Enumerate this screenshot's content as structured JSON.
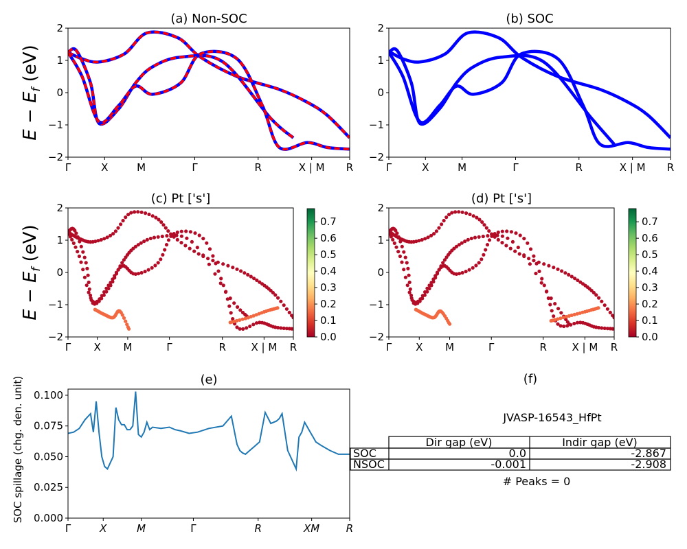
{
  "chart_data": [
    {
      "id": "a",
      "type": "line",
      "title": "(a) Non-SOC",
      "ylabel": "E − E_f (eV)",
      "ylabel_main": "E − E",
      "ylabel_sub": "f",
      "ylabel_unit": " (eV)",
      "ylim": [
        -2,
        2
      ],
      "yticks": [
        "−2",
        "−1",
        "0",
        "1",
        "2"
      ],
      "xticks": [
        "Γ",
        "X",
        "M",
        "Γ",
        "R",
        "X | M",
        "R"
      ],
      "series": [
        {
          "color": "#0000ff",
          "style": "solid",
          "x": [
            0,
            0.05,
            0.11,
            0.2,
            0.28,
            0.39,
            0.47,
            0.6,
            0.75,
            0.85,
            0.92,
            1
          ],
          "y": [
            1.25,
            1.05,
            0.95,
            1.2,
            1.85,
            1.7,
            1.1,
            0.5,
            0.1,
            -0.3,
            -0.7,
            -1.4
          ]
        },
        {
          "color": "#0000ff",
          "style": "solid",
          "x": [
            0,
            0.03,
            0.08,
            0.11,
            0.18,
            0.24,
            0.3,
            0.4,
            0.55,
            0.72,
            0.8
          ],
          "y": [
            1.25,
            1.3,
            0.3,
            -0.95,
            -0.5,
            0.3,
            0.8,
            1.1,
            0.95,
            -0.8,
            -1.4
          ]
        },
        {
          "color": "#0000ff",
          "style": "solid",
          "x": [
            0,
            0.05,
            0.11,
            0.18,
            0.24,
            0.3,
            0.4,
            0.47,
            0.6,
            0.69,
            0.75,
            0.85,
            0.92,
            1
          ],
          "y": [
            1.25,
            0.5,
            -0.9,
            -0.4,
            0.2,
            -0.05,
            0.3,
            1.2,
            1.05,
            -0.4,
            -1.7,
            -1.55,
            -1.7,
            -1.75
          ]
        }
      ]
    },
    {
      "id": "b",
      "type": "line",
      "title": "(b) SOC",
      "ylim": [
        -2,
        2
      ],
      "yticks": [
        "−2",
        "−1",
        "0",
        "1",
        "2"
      ],
      "xticks": [
        "Γ",
        "X",
        "M",
        "Γ",
        "R",
        "X | M",
        "R"
      ],
      "series": [
        {
          "color": "#0000ff",
          "style": "solid",
          "x": [
            0,
            0.05,
            0.11,
            0.2,
            0.28,
            0.39,
            0.47,
            0.6,
            0.75,
            0.85,
            0.92,
            1
          ],
          "y": [
            1.28,
            1.05,
            0.95,
            1.2,
            1.85,
            1.7,
            1.1,
            0.5,
            0.1,
            -0.3,
            -0.7,
            -1.4
          ]
        },
        {
          "color": "#0000ff",
          "style": "solid",
          "x": [
            0,
            0.03,
            0.08,
            0.11,
            0.18,
            0.24,
            0.3,
            0.4,
            0.55,
            0.72,
            0.8
          ],
          "y": [
            1.25,
            1.3,
            0.3,
            -0.95,
            -0.5,
            0.3,
            0.8,
            1.1,
            0.95,
            -0.8,
            -1.6
          ]
        },
        {
          "color": "#0000ff",
          "style": "solid",
          "x": [
            0,
            0.05,
            0.11,
            0.18,
            0.24,
            0.3,
            0.4,
            0.47,
            0.6,
            0.69,
            0.75,
            0.85,
            0.92,
            1
          ],
          "y": [
            1.25,
            0.5,
            -0.9,
            -0.4,
            0.2,
            -0.05,
            0.3,
            1.2,
            1.05,
            -0.4,
            -1.6,
            -1.55,
            -1.7,
            -1.75
          ]
        }
      ]
    },
    {
      "id": "c",
      "type": "scatter",
      "title": "(c)  Pt ['s']",
      "ylabel": "E − E_f (eV)",
      "ylabel_main": "E − E",
      "ylabel_sub": "f",
      "ylabel_unit": " (eV)",
      "ylim": [
        -2,
        2
      ],
      "yticks": [
        "−2",
        "−1",
        "0",
        "1",
        "2"
      ],
      "xticks": [
        "Γ",
        "X",
        "M",
        "Γ",
        "R",
        "X | M",
        "R"
      ],
      "colorbar": {
        "colormap": "RdYlGn",
        "range": [
          0,
          0.78
        ],
        "ticks": [
          "0.0",
          "0.1",
          "0.2",
          "0.3",
          "0.4",
          "0.5",
          "0.6",
          "0.7"
        ]
      },
      "series": [
        {
          "color_value": 0.02,
          "x": [
            0,
            0.05,
            0.11,
            0.2,
            0.28,
            0.39,
            0.47,
            0.6,
            0.75,
            0.85,
            0.92,
            1
          ],
          "y": [
            1.25,
            1.05,
            0.95,
            1.2,
            1.85,
            1.7,
            1.1,
            0.5,
            0.1,
            -0.3,
            -0.7,
            -1.4
          ]
        },
        {
          "color_value": 0.02,
          "x": [
            0,
            0.03,
            0.08,
            0.11,
            0.18,
            0.24,
            0.3,
            0.4,
            0.55,
            0.72,
            0.8
          ],
          "y": [
            1.25,
            1.3,
            0.3,
            -0.95,
            -0.5,
            0.3,
            0.8,
            1.1,
            0.95,
            -0.8,
            -1.4
          ]
        },
        {
          "color_value": 0.02,
          "x": [
            0,
            0.05,
            0.11,
            0.18,
            0.24,
            0.3,
            0.4,
            0.47,
            0.6,
            0.69,
            0.75,
            0.85,
            0.92,
            1
          ],
          "y": [
            1.25,
            0.5,
            -0.9,
            -0.4,
            0.2,
            -0.05,
            0.3,
            1.2,
            1.05,
            -0.4,
            -1.7,
            -1.55,
            -1.7,
            -1.75
          ]
        },
        {
          "color_value": 0.15,
          "x": [
            0.12,
            0.16,
            0.2,
            0.23,
            0.27
          ],
          "y": [
            -1.15,
            -1.3,
            -1.4,
            -1.2,
            -1.75
          ]
        },
        {
          "color_value": 0.15,
          "x": [
            0.72,
            0.8,
            0.88,
            0.93
          ],
          "y": [
            -1.55,
            -1.4,
            -1.2,
            -1.1
          ]
        }
      ]
    },
    {
      "id": "d",
      "type": "scatter",
      "title": "(d) Pt ['s']",
      "ylim": [
        -2,
        2
      ],
      "yticks": [
        "−2",
        "−1",
        "0",
        "1",
        "2"
      ],
      "xticks": [
        "Γ",
        "X",
        "M",
        "Γ",
        "R",
        "X | M",
        "R"
      ],
      "colorbar": {
        "colormap": "RdYlGn",
        "range": [
          0,
          0.78
        ],
        "ticks": [
          "0.0",
          "0.1",
          "0.2",
          "0.3",
          "0.4",
          "0.5",
          "0.6",
          "0.7"
        ]
      },
      "series": [
        {
          "color_value": 0.02,
          "x": [
            0,
            0.05,
            0.11,
            0.2,
            0.28,
            0.39,
            0.47,
            0.6,
            0.75,
            0.85,
            0.92,
            1
          ],
          "y": [
            1.28,
            1.05,
            0.95,
            1.2,
            1.85,
            1.7,
            1.1,
            0.5,
            0.1,
            -0.3,
            -0.7,
            -1.4
          ]
        },
        {
          "color_value": 0.02,
          "x": [
            0,
            0.03,
            0.08,
            0.11,
            0.18,
            0.24,
            0.3,
            0.4,
            0.55,
            0.72,
            0.8
          ],
          "y": [
            1.25,
            1.3,
            0.3,
            -0.95,
            -0.5,
            0.3,
            0.8,
            1.1,
            0.95,
            -0.8,
            -1.6
          ]
        },
        {
          "color_value": 0.02,
          "x": [
            0,
            0.05,
            0.11,
            0.18,
            0.24,
            0.3,
            0.4,
            0.47,
            0.6,
            0.69,
            0.75,
            0.85,
            0.92,
            1
          ],
          "y": [
            1.25,
            0.5,
            -0.9,
            -0.4,
            0.2,
            -0.05,
            0.3,
            1.2,
            1.05,
            -0.4,
            -1.6,
            -1.55,
            -1.7,
            -1.75
          ]
        },
        {
          "color_value": 0.15,
          "x": [
            0.12,
            0.16,
            0.2,
            0.23,
            0.27
          ],
          "y": [
            -1.15,
            -1.3,
            -1.4,
            -1.2,
            -1.6
          ]
        },
        {
          "color_value": 0.15,
          "x": [
            0.72,
            0.8,
            0.88,
            0.93
          ],
          "y": [
            -1.5,
            -1.35,
            -1.2,
            -1.1
          ]
        }
      ]
    },
    {
      "id": "e",
      "type": "line",
      "title": "(e)",
      "ylabel": "SOC spillage (chg. den. unit)",
      "ylim": [
        0,
        0.105
      ],
      "yticks": [
        "0.000",
        "0.025",
        "0.050",
        "0.075",
        "0.100"
      ],
      "ytick_values": [
        0,
        0.025,
        0.05,
        0.075,
        0.1
      ],
      "xticks": [
        "Γ",
        "X",
        "M",
        "Γ",
        "R",
        "XM",
        "R"
      ],
      "series": [
        {
          "color": "#1f77b4",
          "x": [
            0,
            0.02,
            0.04,
            0.06,
            0.08,
            0.09,
            0.1,
            0.11,
            0.12,
            0.13,
            0.14,
            0.15,
            0.16,
            0.17,
            0.18,
            0.19,
            0.2,
            0.21,
            0.22,
            0.23,
            0.24,
            0.25,
            0.26,
            0.27,
            0.28,
            0.29,
            0.3,
            0.33,
            0.36,
            0.38,
            0.4,
            0.43,
            0.46,
            0.5,
            0.55,
            0.58,
            0.6,
            0.61,
            0.62,
            0.63,
            0.64,
            0.66,
            0.68,
            0.7,
            0.72,
            0.74,
            0.75,
            0.76,
            0.78,
            0.8,
            0.81,
            0.82,
            0.83,
            0.84,
            0.85,
            0.86,
            0.87,
            0.88,
            0.9,
            0.93,
            0.96,
            1
          ],
          "y": [
            0.069,
            0.07,
            0.073,
            0.08,
            0.085,
            0.07,
            0.095,
            0.07,
            0.05,
            0.042,
            0.04,
            0.045,
            0.05,
            0.09,
            0.08,
            0.076,
            0.076,
            0.072,
            0.072,
            0.075,
            0.103,
            0.068,
            0.066,
            0.07,
            0.078,
            0.072,
            0.074,
            0.073,
            0.074,
            0.072,
            0.071,
            0.069,
            0.07,
            0.073,
            0.075,
            0.083,
            0.06,
            0.055,
            0.053,
            0.052,
            0.054,
            0.058,
            0.062,
            0.086,
            0.077,
            0.079,
            0.081,
            0.085,
            0.055,
            0.045,
            0.04,
            0.066,
            0.07,
            0.078,
            0.074,
            0.07,
            0.066,
            0.062,
            0.059,
            0.055,
            0.052,
            0.052
          ]
        }
      ]
    }
  ],
  "panel_f": {
    "label": "(f)",
    "material": "JVASP-16543_HfPt",
    "table": {
      "columns": [
        "Dir gap (eV)",
        "Indir gap (eV)"
      ],
      "rows": [
        {
          "label": "SOC",
          "dir": "0.0",
          "indir": "-2.867"
        },
        {
          "label": "NSOC",
          "dir": "-0.001",
          "indir": "-2.908"
        }
      ]
    },
    "peaks": "# Peaks = 0"
  }
}
